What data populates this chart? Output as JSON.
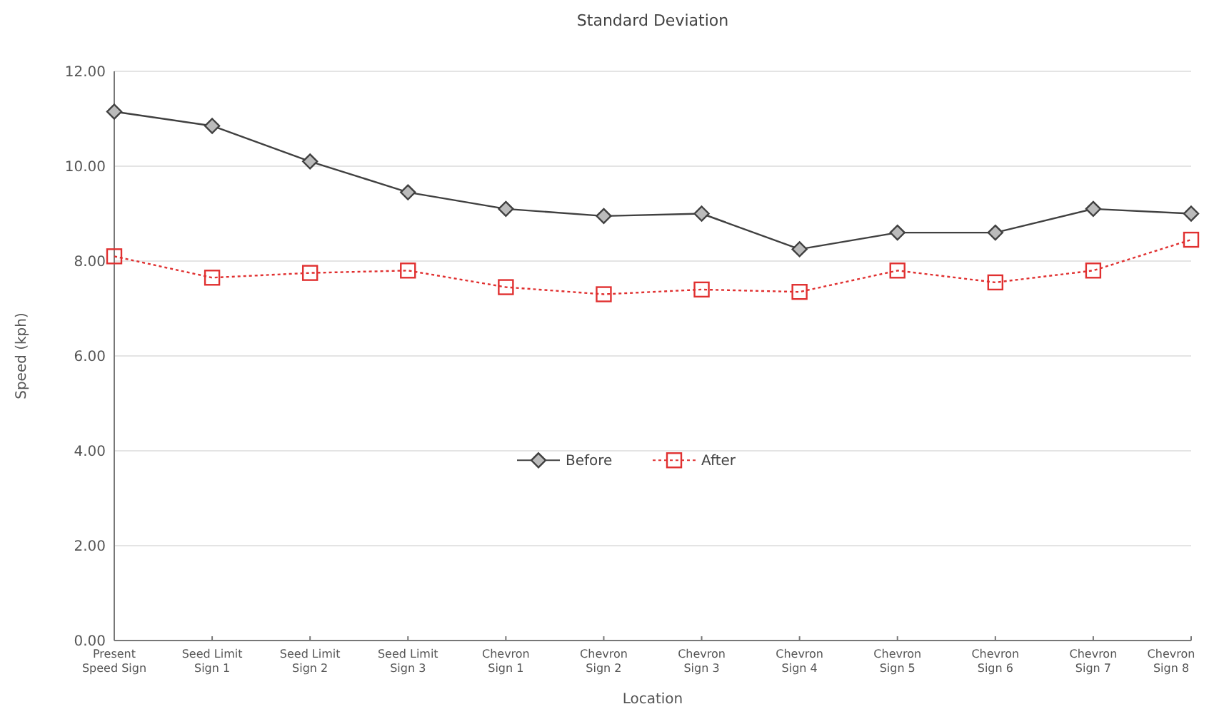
{
  "chart_data": {
    "type": "line",
    "title": "Standard Deviation",
    "xlabel": "Location",
    "ylabel": "Speed (kph)",
    "categories": [
      "Present\nSpeed Sign",
      "Seed Limit\nSign 1",
      "Seed Limit\nSign 2",
      "Seed Limit\nSign 3",
      "Chevron\nSign 1",
      "Chevron\nSign 2",
      "Chevron\nSign 3",
      "Chevron\nSign 4",
      "Chevron\nSign 5",
      "Chevron\nSign 6",
      "Chevron\nSign 7",
      "Chevron\nSign 8"
    ],
    "series": [
      {
        "name": "Before",
        "color": "#404040",
        "marker": "diamond",
        "line_style": "solid",
        "values": [
          11.15,
          10.85,
          10.1,
          9.45,
          9.1,
          8.95,
          9.0,
          8.25,
          8.6,
          8.6,
          9.1,
          9.0
        ]
      },
      {
        "name": "After",
        "color": "#e03030",
        "marker": "square",
        "line_style": "dotted",
        "values": [
          8.1,
          7.65,
          7.75,
          7.8,
          7.45,
          7.3,
          7.4,
          7.35,
          7.8,
          7.55,
          7.8,
          8.45
        ]
      }
    ],
    "ylim": [
      0,
      12
    ],
    "yticks": [
      {
        "value": 0,
        "label": "0.00"
      },
      {
        "value": 2,
        "label": "2.00"
      },
      {
        "value": 4,
        "label": "4.00"
      },
      {
        "value": 6,
        "label": "6.00"
      },
      {
        "value": 8,
        "label": "8.00"
      },
      {
        "value": 10,
        "label": "10.00"
      },
      {
        "value": 12,
        "label": "12.00"
      }
    ],
    "grid": "y",
    "legend": "center"
  }
}
